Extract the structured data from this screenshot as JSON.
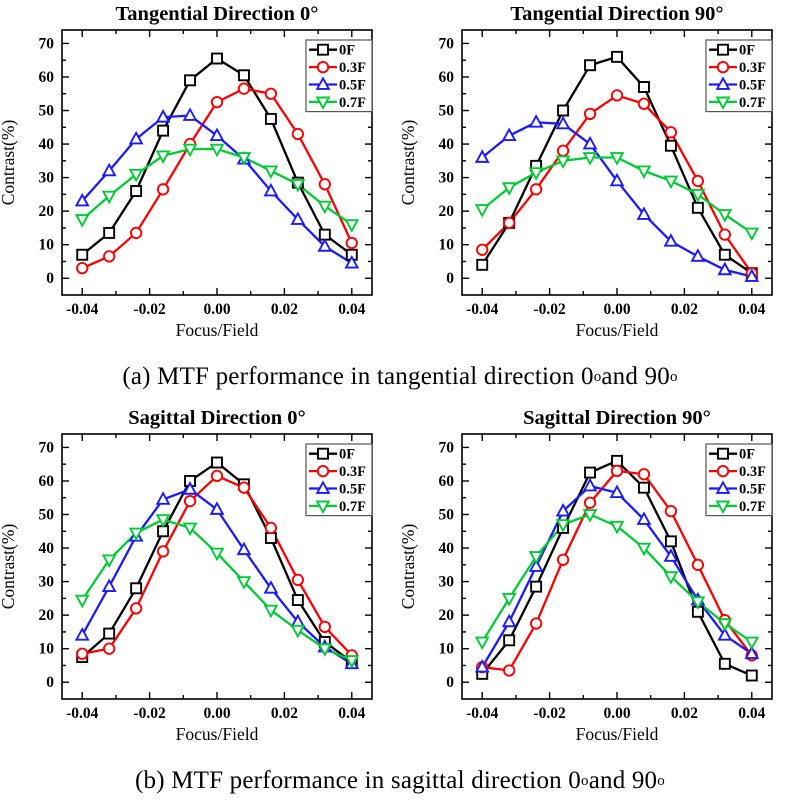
{
  "captions": [
    {
      "segments": [
        {
          "text": "(a) MTF performance in tangential direction 0"
        },
        {
          "text": "o",
          "sup": true
        },
        {
          "text": " and 90"
        },
        {
          "text": "o",
          "sup": true
        }
      ]
    },
    {
      "segments": [
        {
          "text": "(b) MTF performance in sagittal direction 0"
        },
        {
          "text": "o",
          "sup": true
        },
        {
          "text": " and 90"
        },
        {
          "text": "o",
          "sup": true
        }
      ]
    }
  ],
  "colors": {
    "0F": "#000000",
    "0.3F": "#ff0000",
    "0.5F": "#1a1aff",
    "0.7F": "#00cc33"
  },
  "chart_data": [
    {
      "type": "line",
      "title": "Tangential Direction 0°",
      "xlabel": "Focus/Field",
      "ylabel": "Contrast(%)",
      "xlim": [
        -0.046,
        0.046
      ],
      "ylim": [
        -5,
        74
      ],
      "grid": false,
      "legend_position": "top-right",
      "x_tick_labels": [
        "-0.04",
        "-0.02",
        "0.00",
        "0.02",
        "0.04"
      ],
      "x_ticks_major": [
        -0.04,
        -0.02,
        0,
        0.02,
        0.04
      ],
      "x_ticks_minor": [
        -0.03,
        -0.01,
        0.01,
        0.03
      ],
      "y_ticks_major": [
        0,
        10,
        20,
        30,
        40,
        50,
        60,
        70
      ],
      "y_ticks_minor": [
        5,
        15,
        25,
        35,
        45,
        55,
        65
      ],
      "x": [
        -0.04,
        -0.032,
        -0.024,
        -0.016,
        -0.008,
        0,
        0.008,
        0.016,
        0.024,
        0.032,
        0.04
      ],
      "series": [
        {
          "name": "0F",
          "color": "#000000",
          "marker": "square",
          "values": [
            7,
            13.5,
            26,
            44,
            59,
            65.5,
            60.5,
            47.5,
            28.5,
            13,
            7
          ]
        },
        {
          "name": "0.3F",
          "color": "#ff0000",
          "marker": "circle",
          "values": [
            3,
            6.5,
            13.5,
            26.5,
            40,
            52.5,
            56.5,
            55,
            43,
            28,
            10.5
          ]
        },
        {
          "name": "0.5F",
          "color": "#1a1aff",
          "marker": "triangle-up",
          "values": [
            23,
            32,
            41.5,
            48,
            48.5,
            42.5,
            35.5,
            26,
            17.5,
            9.5,
            4.5
          ]
        },
        {
          "name": "0.7F",
          "color": "#00cc33",
          "marker": "triangle-down",
          "values": [
            17.5,
            24.5,
            31,
            36.5,
            38.5,
            38.5,
            36,
            32,
            28,
            21.5,
            16
          ]
        }
      ]
    },
    {
      "type": "line",
      "title": "Tangential Direction 90°",
      "xlabel": "Focus/Field",
      "ylabel": "Contrast(%)",
      "xlim": [
        -0.046,
        0.046
      ],
      "ylim": [
        -5,
        74
      ],
      "grid": false,
      "legend_position": "top-right",
      "x_tick_labels": [
        "-0.04",
        "-0.02",
        "0.00",
        "0.02",
        "0.04"
      ],
      "x_ticks_major": [
        -0.04,
        -0.02,
        0,
        0.02,
        0.04
      ],
      "x_ticks_minor": [
        -0.03,
        -0.01,
        0.01,
        0.03
      ],
      "y_ticks_major": [
        0,
        10,
        20,
        30,
        40,
        50,
        60,
        70
      ],
      "y_ticks_minor": [
        5,
        15,
        25,
        35,
        45,
        55,
        65
      ],
      "x": [
        -0.04,
        -0.032,
        -0.024,
        -0.016,
        -0.008,
        0,
        0.008,
        0.016,
        0.024,
        0.032,
        0.04
      ],
      "series": [
        {
          "name": "0F",
          "color": "#000000",
          "marker": "square",
          "values": [
            4,
            16.5,
            33.5,
            50,
            63.5,
            66,
            57,
            39.5,
            21,
            7,
            1.5
          ]
        },
        {
          "name": "0.3F",
          "color": "#ff0000",
          "marker": "circle",
          "values": [
            8.5,
            16.5,
            26.5,
            38,
            49,
            54.5,
            52,
            43.5,
            29,
            13,
            1.5
          ]
        },
        {
          "name": "0.5F",
          "color": "#1a1aff",
          "marker": "triangle-up",
          "values": [
            36,
            42.5,
            46.5,
            46,
            40,
            29,
            19,
            11,
            6.5,
            2.5,
            0.5
          ]
        },
        {
          "name": "0.7F",
          "color": "#00cc33",
          "marker": "triangle-down",
          "values": [
            20.5,
            27,
            31.5,
            35,
            36,
            36,
            32,
            29,
            25,
            19,
            13.5
          ]
        }
      ]
    },
    {
      "type": "line",
      "title": "Sagittal Direction 0°",
      "xlabel": "Focus/Field",
      "ylabel": "Contrast(%)",
      "xlim": [
        -0.046,
        0.046
      ],
      "ylim": [
        -5,
        74
      ],
      "grid": false,
      "legend_position": "top-right",
      "x_tick_labels": [
        "-0.04",
        "-0.02",
        "0.00",
        "0.02",
        "0.04"
      ],
      "x_ticks_major": [
        -0.04,
        -0.02,
        0,
        0.02,
        0.04
      ],
      "x_ticks_minor": [
        -0.03,
        -0.01,
        0.01,
        0.03
      ],
      "y_ticks_major": [
        0,
        10,
        20,
        30,
        40,
        50,
        60,
        70
      ],
      "y_ticks_minor": [
        5,
        15,
        25,
        35,
        45,
        55,
        65
      ],
      "x": [
        -0.04,
        -0.032,
        -0.024,
        -0.016,
        -0.008,
        0,
        0.008,
        0.016,
        0.024,
        0.032,
        0.04
      ],
      "series": [
        {
          "name": "0F",
          "color": "#000000",
          "marker": "square",
          "values": [
            7.5,
            14.5,
            28,
            45,
            60,
            65.5,
            59,
            43,
            24.5,
            12,
            6
          ]
        },
        {
          "name": "0.3F",
          "color": "#ff0000",
          "marker": "circle",
          "values": [
            8.5,
            10,
            22,
            39,
            54,
            61.5,
            58,
            46,
            30.5,
            16.5,
            8
          ]
        },
        {
          "name": "0.5F",
          "color": "#1a1aff",
          "marker": "triangle-up",
          "values": [
            14,
            28.5,
            43.5,
            54.5,
            57.5,
            51.5,
            39.5,
            28,
            18,
            10.5,
            5.5
          ]
        },
        {
          "name": "0.7F",
          "color": "#00cc33",
          "marker": "triangle-down",
          "values": [
            24.5,
            36.5,
            44.5,
            48.5,
            46,
            38.5,
            30,
            21.5,
            15.5,
            10,
            6.5
          ]
        }
      ]
    },
    {
      "type": "line",
      "title": "Sagittal Direction 90°",
      "xlabel": "Focus/Field",
      "ylabel": "Contrast(%)",
      "xlim": [
        -0.046,
        0.046
      ],
      "ylim": [
        -5,
        74
      ],
      "grid": false,
      "legend_position": "top-right",
      "x_tick_labels": [
        "-0.04",
        "-0.02",
        "0.00",
        "0.02",
        "0.04"
      ],
      "x_ticks_major": [
        -0.04,
        -0.02,
        0,
        0.02,
        0.04
      ],
      "x_ticks_minor": [
        -0.03,
        -0.01,
        0.01,
        0.03
      ],
      "y_ticks_major": [
        0,
        10,
        20,
        30,
        40,
        50,
        60,
        70
      ],
      "y_ticks_minor": [
        5,
        15,
        25,
        35,
        45,
        55,
        65
      ],
      "x": [
        -0.04,
        -0.032,
        -0.024,
        -0.016,
        -0.008,
        0,
        0.008,
        0.016,
        0.024,
        0.032,
        0.04
      ],
      "series": [
        {
          "name": "0F",
          "color": "#000000",
          "marker": "square",
          "values": [
            2.5,
            12.5,
            28.5,
            46,
            62.5,
            66,
            58,
            42,
            21,
            5.5,
            2
          ]
        },
        {
          "name": "0.3F",
          "color": "#ff0000",
          "marker": "circle",
          "values": [
            4.5,
            3.5,
            17.5,
            36.5,
            53.5,
            63,
            62,
            51,
            35,
            18.5,
            8
          ]
        },
        {
          "name": "0.5F",
          "color": "#1a1aff",
          "marker": "triangle-up",
          "values": [
            4.5,
            18,
            34.5,
            51,
            58.5,
            56.5,
            48.5,
            37.5,
            24.5,
            14,
            8.5
          ]
        },
        {
          "name": "0.7F",
          "color": "#00cc33",
          "marker": "triangle-down",
          "values": [
            12,
            25,
            37.5,
            47,
            50,
            46.5,
            40,
            31.5,
            24,
            17.5,
            12
          ]
        }
      ]
    }
  ]
}
